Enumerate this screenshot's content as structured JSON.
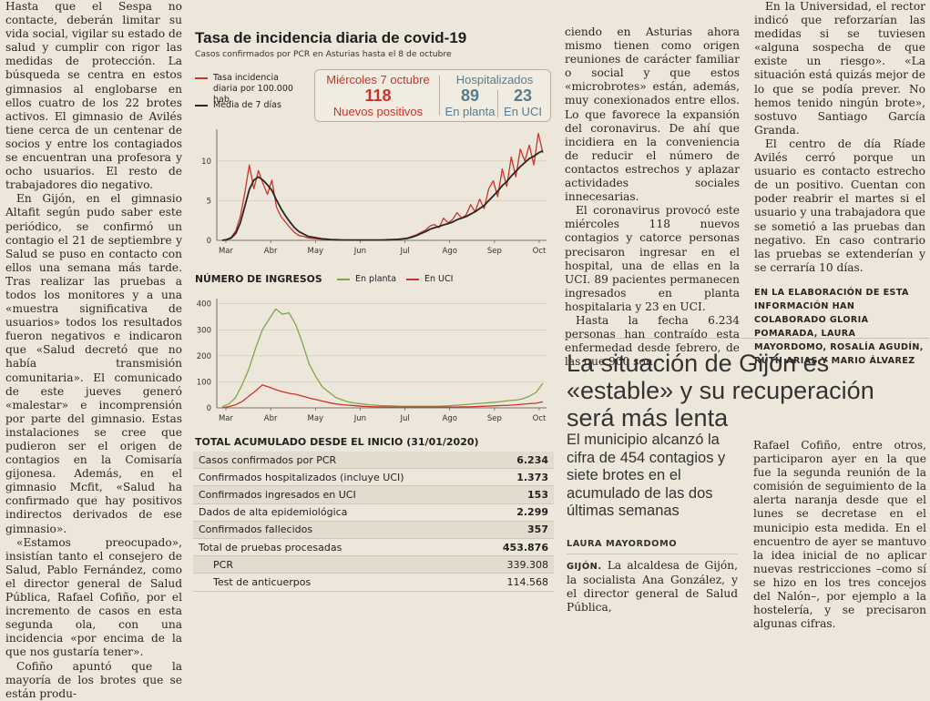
{
  "col1": [
    "Hasta que el Sespa no contacte, deberán limitar su vida social, vigilar su estado de salud y cumplir con rigor las medidas de protección. La búsqueda se centra en estos gimnasios al englobarse en ellos cuatro de los 22 brotes activos. El gimnasio de Avilés tiene cerca de un centenar de socios y entre los contagiados se encuentran una profesora y ocho usuarios. El resto de trabajadores dio negativo.",
    "En Gijón, en el gimnasio Altafit según pudo saber este periódico, se confirmó un contagio el 21 de septiembre y Salud se puso en contacto con ellos una semana más tarde. Tras realizar las pruebas a todos los monitores y a una «muestra significativa de usuarios» todos los resultados fueron negativos e indicaron que «Salud decretó que no había transmisión comunitaria». El comunicado de este jueves generó «malestar» e incomprensión por parte del gimnasio. Estas instalaciones se cree que pudieron ser el origen de contagios en la Comisaría gijonesa. Además, en el gimnasio Mcfit, «Salud ha confirmado que hay positivos indirectos derivados de ese gimnasio».",
    "«Estamos preocupado», insistían tanto el consejero de Salud, Pablo Fernández, como el director general de Salud Pública, Rafael Cofiño, por el incremento de casos en esta segunda ola, con una incidencia «por encima de la que nos gustaría tener».",
    "Cofiño apuntó que la mayoría de los brotes que se están produ-"
  ],
  "graphic": {
    "title": "Tasa de incidencia diaria de covid-19",
    "subtitle": "Casos confirmados por PCR en Asturias hasta el 8 de octubre",
    "legend_rate": "Tasa incidencia diaria por 100.000 hab.",
    "legend_avg": "Media de 7 días",
    "box": {
      "date": "Miércoles 7 octubre",
      "new_num": "118",
      "new_label": "Nuevos positivos",
      "hosp_title": "Hospitalizados",
      "ward_num": "89",
      "ward_label": "En planta",
      "icu_num": "23",
      "icu_label": "En UCI"
    },
    "admissions_title": "NÚMERO DE INGRESOS",
    "legend_ward": "En planta",
    "legend_icu": "En UCI",
    "totals_title": "TOTAL ACUMULADO DESDE EL INICIO (31/01/2020)",
    "totals": [
      {
        "k": "Casos confirmados por PCR",
        "v": "6.234"
      },
      {
        "k": "Confirmados hospitalizados (incluye UCI)",
        "v": "1.373"
      },
      {
        "k": "Confirmados ingresados en UCI",
        "v": "153"
      },
      {
        "k": "Dados de alta epidemiológica",
        "v": "2.299"
      },
      {
        "k": "Confirmados fallecidos",
        "v": "357"
      },
      {
        "k": "Total de pruebas procesadas",
        "v": "453.876"
      },
      {
        "k": "PCR",
        "v": "339.308"
      },
      {
        "k": "Test de anticuerpos",
        "v": "114.568"
      }
    ],
    "colors": {
      "rate": "#c8352b",
      "avg": "#2a2622",
      "ward": "#7fa64e",
      "icu": "#c8352b"
    }
  },
  "chart_data": [
    {
      "type": "line",
      "title": "Tasa de incidencia diaria de covid-19",
      "x_ticks": [
        "Mar",
        "Abr",
        "May",
        "Jun",
        "Jul",
        "Ago",
        "Sep",
        "Oct"
      ],
      "y_ticks": [
        0,
        5,
        10
      ],
      "ylim": [
        0,
        14
      ],
      "series": [
        {
          "name": "Tasa incidencia diaria por 100.000 hab.",
          "values": [
            0,
            0.1,
            0.4,
            1.2,
            3.0,
            6.0,
            9.5,
            6.5,
            8.8,
            7.2,
            5.8,
            7.6,
            4.2,
            3.0,
            2.3,
            1.6,
            1.0,
            0.6,
            0.5,
            0.3,
            0.25,
            0.2,
            0.15,
            0.1,
            0.1,
            0.08,
            0.06,
            0.05,
            0.05,
            0.05,
            0.05,
            0.05,
            0.05,
            0.05,
            0.05,
            0.05,
            0.05,
            0.1,
            0.1,
            0.15,
            0.2,
            0.3,
            0.5,
            0.7,
            1.0,
            1.3,
            1.8,
            2.0,
            1.6,
            2.8,
            2.2,
            2.6,
            3.5,
            2.8,
            3.2,
            4.5,
            3.6,
            5.2,
            4.0,
            6.5,
            7.5,
            5.5,
            9.0,
            6.8,
            10.5,
            8.0,
            11.5,
            10.0,
            12.0,
            9.5,
            13.5,
            11.0
          ]
        },
        {
          "name": "Media de 7 días",
          "values": [
            0,
            0.1,
            0.3,
            0.9,
            2.2,
            4.3,
            6.4,
            7.6,
            8.0,
            7.6,
            7.0,
            6.3,
            5.1,
            4.0,
            3.1,
            2.3,
            1.6,
            1.1,
            0.8,
            0.5,
            0.4,
            0.3,
            0.2,
            0.15,
            0.1,
            0.08,
            0.06,
            0.05,
            0.05,
            0.05,
            0.05,
            0.05,
            0.05,
            0.05,
            0.05,
            0.05,
            0.06,
            0.08,
            0.1,
            0.13,
            0.18,
            0.25,
            0.4,
            0.6,
            0.85,
            1.1,
            1.4,
            1.6,
            1.75,
            1.95,
            2.1,
            2.3,
            2.6,
            2.8,
            3.0,
            3.3,
            3.6,
            4.0,
            4.4,
            5.0,
            5.6,
            6.2,
            6.9,
            7.4,
            8.1,
            8.7,
            9.3,
            9.8,
            10.3,
            10.6,
            11.0,
            11.3
          ]
        }
      ]
    },
    {
      "type": "line",
      "title": "NÚMERO DE INGRESOS",
      "x_ticks": [
        "Mar",
        "Abr",
        "May",
        "Jun",
        "Jul",
        "Ago",
        "Sep",
        "Oct"
      ],
      "y_ticks": [
        0,
        100,
        200,
        300,
        400
      ],
      "ylim": [
        0,
        420
      ],
      "series": [
        {
          "name": "En planta",
          "values": [
            5,
            15,
            40,
            90,
            150,
            230,
            300,
            340,
            380,
            360,
            365,
            320,
            250,
            170,
            120,
            80,
            60,
            40,
            30,
            22,
            18,
            15,
            12,
            10,
            8,
            8,
            7,
            6,
            6,
            6,
            6,
            6,
            6,
            7,
            8,
            10,
            12,
            14,
            16,
            18,
            20,
            22,
            25,
            28,
            30,
            35,
            45,
            60,
            95
          ]
        },
        {
          "name": "En UCI",
          "values": [
            0,
            5,
            12,
            25,
            45,
            65,
            88,
            80,
            70,
            62,
            56,
            52,
            45,
            38,
            32,
            26,
            20,
            15,
            12,
            10,
            8,
            6,
            5,
            4,
            4,
            3,
            3,
            3,
            3,
            3,
            3,
            3,
            3,
            3,
            3,
            3,
            4,
            4,
            5,
            6,
            7,
            8,
            9,
            10,
            12,
            14,
            16,
            18,
            23
          ]
        }
      ]
    }
  ],
  "col3": [
    "ciendo en Asturias ahora mismo tienen como origen reuniones de carácter familiar o social y que estos «microbrotes» están, además, muy conexionados entre ellos. Lo que favorece la expansión del coronavirus. De ahí que incidiera en la conveniencia de reducir el número de contactos estrechos y aplazar actividades sociales innecesarias.",
    "El coronavirus provocó este miércoles 118 nuevos contagios y catorce personas precisaron ingresar en el hospital, una de ellas en la UCI. 89 pacientes permanecen ingresados en planta hospitalaria y 23 en UCI.",
    "Hasta la fecha 6.234 personas han contraído esta enfermedad desde febrero, de las que 900 son"
  ],
  "col4": [
    "En la Universidad, el rector indicó que reforzarían las medidas si se tuviesen «alguna sospecha de que existe un riesgo». «La situación está quizás mejor de lo que se podía prever. No hemos tenido ningún brote», sostuvo Santiago García Granda.",
    "El centro de día Ríade Avilés cerró porque un usuario es contacto estrecho de un positivo. Cuentan con poder reabrir el martes si el usuario y una trabajadora que se sometió a las pruebas dan negativo. En caso contrario las pruebas se extenderían y se cerraría 10 días."
  ],
  "credits": "EN LA ELABORACIÓN DE ESTA INFORMACIÓN HAN COLABORADO GLORIA POMARADA, LAURA MAYORDOMO, ROSALÍA AGUDÍN, RUTH ARIAS Y MARIO ÁLVAREZ",
  "article2": {
    "headline": "La situación de Gijón es «estable» y su recuperación será más lenta",
    "deck": "El municipio alcanzó la cifra de 454 contagios y siete brotes en el acumulado de las dos últimas semanas",
    "byline": "LAURA MAYORDOMO",
    "lead_place": "GIJÓN.",
    "body1": "La alcaldesa de Gijón, la socialista Ana González, y el director general de Salud Pública,",
    "body2": "Rafael Cofiño, entre otros, participaron ayer en la que fue la segunda reunión de la comisión de seguimiento de la alerta naranja desde que el lunes se decretase en el municipio esta medida. En el encuentro de ayer se mantuvo la idea inicial de no aplicar nuevas restricciones –como sí se hizo en los tres concejos del Nalón–, por ejemplo a la hostelería, y se precisaron algunas cifras."
  }
}
